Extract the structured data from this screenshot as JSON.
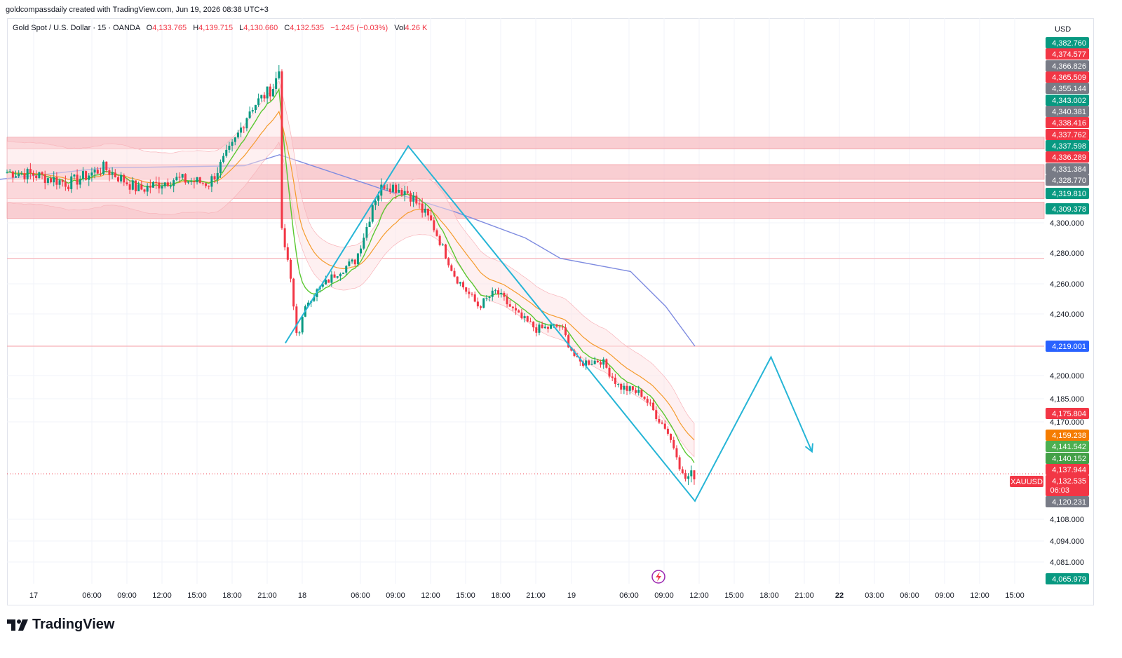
{
  "caption": "goldcompassdaily created with TradingView.com, Jun 19, 2026 08:38 UTC+3",
  "legend": {
    "symbol": "Gold Spot / U.S. Dollar · 15 · OANDA",
    "open_key": "O",
    "open": "4,133.765",
    "high_key": "H",
    "high": "4,139.715",
    "low_key": "L",
    "low": "4,130.660",
    "close_key": "C",
    "close": "4,132.535",
    "change": "−1.245 (−0.03%)",
    "vol_key": "Vol",
    "vol": "4.26 K"
  },
  "currency": "USD",
  "brand": "TradingView",
  "colors": {
    "up": "#089981",
    "down": "#f23645",
    "zone": "#f7b9bf",
    "line": "#f6b1b7",
    "drawing": "#26b5d6",
    "ma_slow": "#7e8be0",
    "ma_mid": "#f59b2c",
    "ma_fast": "#5ac830",
    "current": "#f23645"
  },
  "chart_data": {
    "type": "candlestick",
    "symbol": "XAUUSD",
    "interval": "15",
    "y_ticks": [
      "4,300.000",
      "4,280.000",
      "4,260.000",
      "4,240.000",
      "4,200.000",
      "4,185.000",
      "4,170.000",
      "4,108.000",
      "4,094.000",
      "4,081.000"
    ],
    "x_ticks": [
      "17",
      "06:00",
      "09:00",
      "12:00",
      "15:00",
      "18:00",
      "21:00",
      "18",
      "06:00",
      "09:00",
      "12:00",
      "15:00",
      "18:00",
      "21:00",
      "19",
      "06:00",
      "09:00",
      "12:00",
      "15:00",
      "18:00",
      "21:00",
      "22",
      "03:00",
      "06:00",
      "09:00",
      "12:00",
      "15:00"
    ],
    "price_labels": [
      {
        "value": "4,382.760",
        "color": "#089981"
      },
      {
        "value": "4,374.577",
        "color": "#f23645"
      },
      {
        "value": "4,366.826",
        "color": "#787b86"
      },
      {
        "value": "4,365.509",
        "color": "#f23645"
      },
      {
        "value": "4,355.144",
        "color": "#787b86"
      },
      {
        "value": "4,343.002",
        "color": "#089981"
      },
      {
        "value": "4,340.381",
        "color": "#787b86"
      },
      {
        "value": "4,338.416",
        "color": "#f23645"
      },
      {
        "value": "4,337.762",
        "color": "#f23645"
      },
      {
        "value": "4,337.598",
        "color": "#089981"
      },
      {
        "value": "4,336.289",
        "color": "#f23645"
      },
      {
        "value": "4,331.384",
        "color": "#787b86"
      },
      {
        "value": "4,328.770",
        "color": "#787b86"
      },
      {
        "value": "4,319.810",
        "color": "#089981"
      },
      {
        "value": "4,309.378",
        "color": "#089981"
      },
      {
        "value": "4,219.001",
        "color": "#2962ff"
      },
      {
        "value": "4,175.804",
        "color": "#f23645"
      },
      {
        "value": "4,159.238",
        "color": "#f57c00"
      },
      {
        "value": "4,141.542",
        "color": "#4caf50"
      },
      {
        "value": "4,140.152",
        "color": "#43a047"
      },
      {
        "value": "4,137.944",
        "color": "#f23645"
      },
      {
        "value": "4,132.535",
        "color": "#f23645"
      },
      {
        "value": "06:03",
        "color": "#f23645"
      },
      {
        "value": "4,120.231",
        "color": "#787b86"
      },
      {
        "value": "4,065.979",
        "color": "#089981"
      }
    ],
    "current_price": 4132.535,
    "current_label": "XAUUSD",
    "resistance_zones": [
      [
        4333.6,
        4339.0
      ],
      [
        4319.8,
        4326.5
      ],
      [
        4311.0,
        4318.5
      ],
      [
        4302.0,
        4309.4
      ]
    ],
    "horizontal_lines": [
      4276.5,
      4219.0
    ],
    "zigzag_drawing": [
      {
        "x": "17 21:30",
        "y": 4221
      },
      {
        "x": "18 08:00",
        "y": 4335
      },
      {
        "x": "19 08:30",
        "y": 4120
      },
      {
        "x": "19 15:00",
        "y": 4212
      },
      {
        "x": "19 18:30",
        "y": 4145
      }
    ],
    "close_path": [
      {
        "x": "16 18:00",
        "y": 4325
      },
      {
        "x": "17 00:00",
        "y": 4322
      },
      {
        "x": "17 03:00",
        "y": 4318
      },
      {
        "x": "17 06:00",
        "y": 4325
      },
      {
        "x": "17 09:00",
        "y": 4315
      },
      {
        "x": "17 12:00",
        "y": 4320
      },
      {
        "x": "17 15:00",
        "y": 4318
      },
      {
        "x": "17 17:00",
        "y": 4335
      },
      {
        "x": "17 18:30",
        "y": 4352
      },
      {
        "x": "17 20:30",
        "y": 4362
      },
      {
        "x": "17 21:00",
        "y": 4370
      },
      {
        "x": "17 21:15",
        "y": 4285
      },
      {
        "x": "17 21:45",
        "y": 4275
      },
      {
        "x": "17 22:30",
        "y": 4225
      },
      {
        "x": "17 23:30",
        "y": 4250
      },
      {
        "x": "18 02:00",
        "y": 4268
      },
      {
        "x": "18 03:30",
        "y": 4275
      },
      {
        "x": "18 05:00",
        "y": 4310
      },
      {
        "x": "18 06:00",
        "y": 4318
      },
      {
        "x": "18 08:00",
        "y": 4314
      },
      {
        "x": "18 10:00",
        "y": 4300
      },
      {
        "x": "18 12:00",
        "y": 4265
      },
      {
        "x": "18 14:00",
        "y": 4245
      },
      {
        "x": "18 15:30",
        "y": 4255
      },
      {
        "x": "18 17:30",
        "y": 4238
      },
      {
        "x": "18 19:00",
        "y": 4230
      },
      {
        "x": "18 21:00",
        "y": 4232
      },
      {
        "x": "18 22:30",
        "y": 4208
      },
      {
        "x": "19 00:30",
        "y": 4210
      },
      {
        "x": "19 02:00",
        "y": 4193
      },
      {
        "x": "19 04:00",
        "y": 4188
      },
      {
        "x": "19 06:00",
        "y": 4165
      },
      {
        "x": "19 07:30",
        "y": 4130
      },
      {
        "x": "19 08:30",
        "y": 4132.5
      }
    ],
    "ma_slow": [
      {
        "x": "16 18:00",
        "y": 4318
      },
      {
        "x": "17 06:00",
        "y": 4325
      },
      {
        "x": "17 18:00",
        "y": 4326
      },
      {
        "x": "17 21:00",
        "y": 4331
      },
      {
        "x": "18 06:00",
        "y": 4315
      },
      {
        "x": "18 12:00",
        "y": 4305
      },
      {
        "x": "18 18:00",
        "y": 4290
      },
      {
        "x": "18 21:00",
        "y": 4276.5
      },
      {
        "x": "19 03:00",
        "y": 4268
      },
      {
        "x": "19 06:00",
        "y": 4245
      },
      {
        "x": "19 08:30",
        "y": 4219
      }
    ]
  }
}
